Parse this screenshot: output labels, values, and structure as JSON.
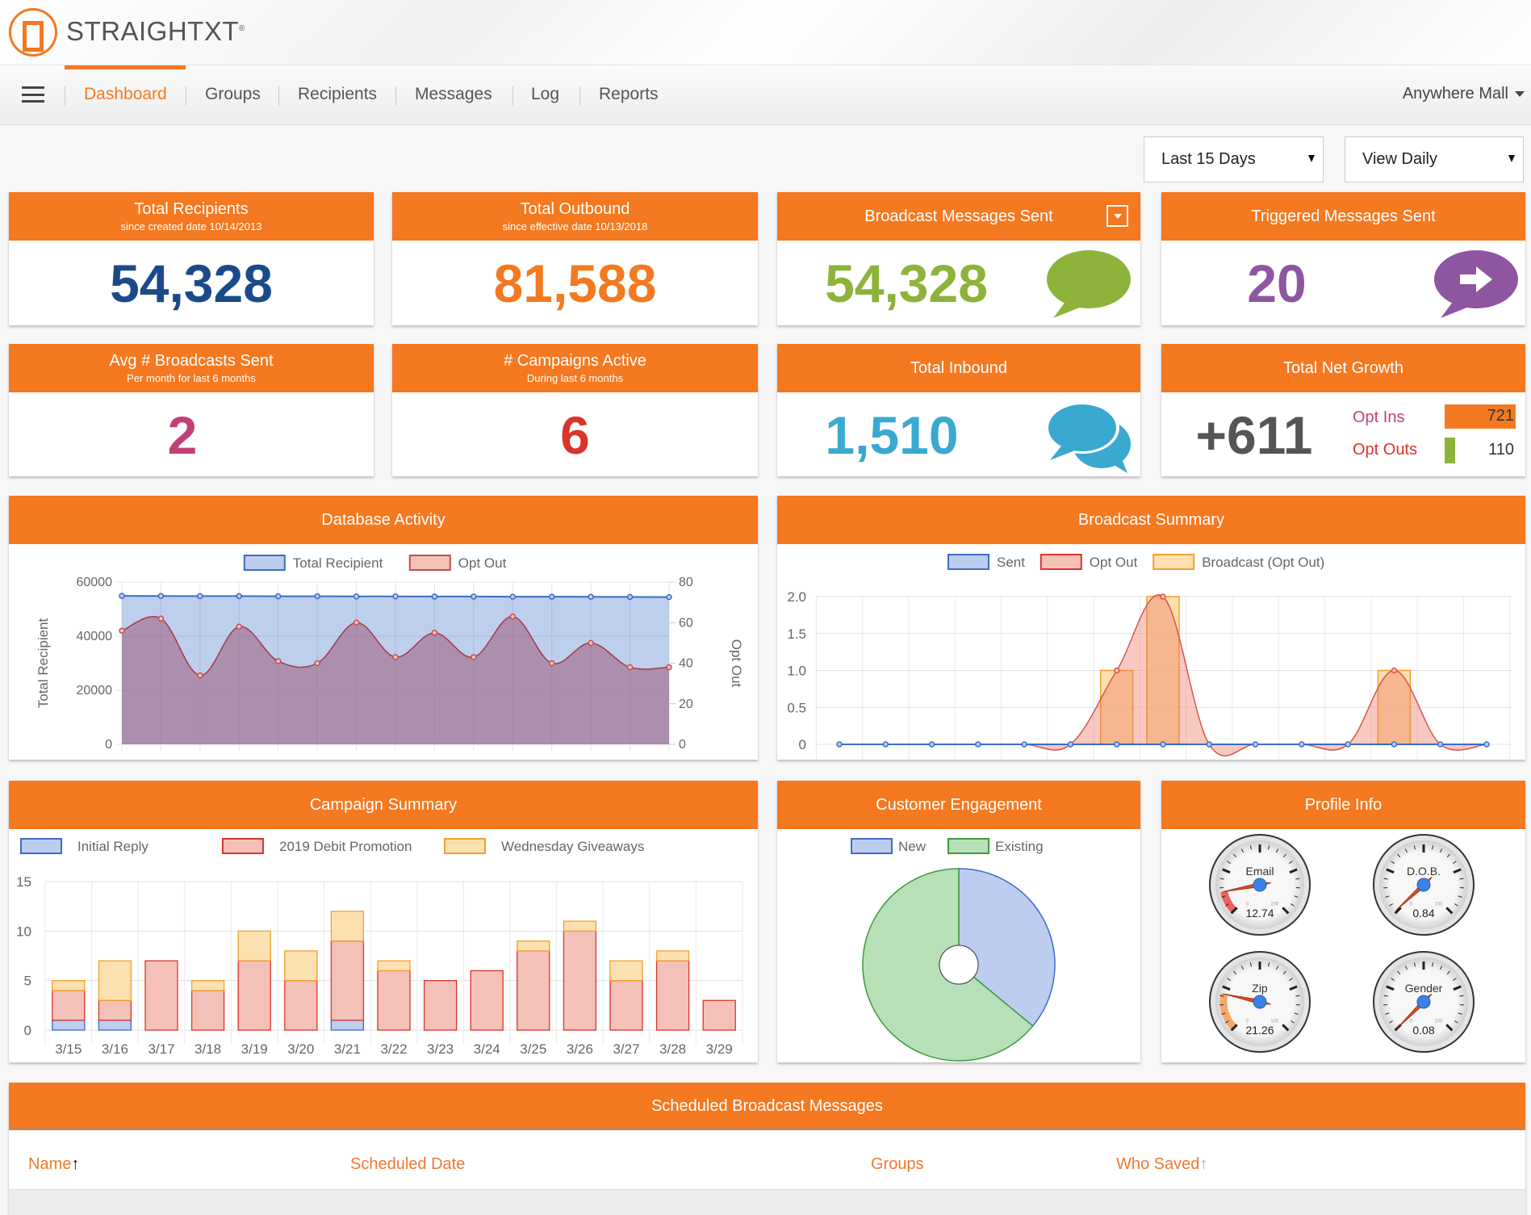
{
  "brand": {
    "name": "STRAIGHTXT",
    "mark": "®"
  },
  "nav": {
    "items": [
      {
        "label": "Dashboard",
        "active": true
      },
      {
        "label": "Groups"
      },
      {
        "label": "Recipients"
      },
      {
        "label": "Messages"
      },
      {
        "label": "Log"
      },
      {
        "label": "Reports"
      }
    ],
    "account": "Anywhere Mall"
  },
  "filters": {
    "range": "Last 15 Days",
    "view": "View Daily"
  },
  "cards": {
    "total_recipients": {
      "title": "Total Recipients",
      "subtitle": "since created date 10/14/2013",
      "value": "54,328",
      "color": "#1b4a8a"
    },
    "total_outbound": {
      "title": "Total Outbound",
      "subtitle": "since effective date 10/13/2018",
      "value": "81,588",
      "color": "#f47920"
    },
    "broadcast_sent": {
      "title": "Broadcast Messages Sent",
      "value": "54,328",
      "color": "#8db33a",
      "icon": "speech-bubble-icon"
    },
    "triggered_sent": {
      "title": "Triggered Messages Sent",
      "value": "20",
      "color": "#8e55a0",
      "icon": "arrow-bubble-icon"
    },
    "avg_broadcasts": {
      "title": "Avg # Broadcasts Sent",
      "subtitle": "Per month for last 6 months",
      "value": "2",
      "color": "#c2407a"
    },
    "campaigns_active": {
      "title": "# Campaigns Active",
      "subtitle": "During last 6 months",
      "value": "6",
      "color": "#d9342b"
    },
    "total_inbound": {
      "title": "Total Inbound",
      "value": "1,510",
      "color": "#3aa9d0",
      "icon": "conversation-bubbles-icon"
    },
    "net_growth": {
      "title": "Total Net Growth",
      "value": "+611",
      "opt_ins_label": "Opt Ins",
      "opt_ins": 721,
      "opt_ins_text": "721",
      "opt_outs_label": "Opt Outs",
      "opt_outs": 110,
      "opt_outs_text": "110"
    }
  },
  "panels": {
    "database_activity": "Database Activity",
    "broadcast_summary": "Broadcast Summary",
    "campaign_summary": "Campaign Summary",
    "customer_engagement": "Customer Engagement",
    "profile_info": "Profile Info"
  },
  "chart_data": [
    {
      "id": "database_activity",
      "type": "line",
      "legend": "top",
      "series": [
        {
          "name": "Total Recipient",
          "axis": "left",
          "values": [
            54900,
            54850,
            54800,
            54800,
            54750,
            54750,
            54700,
            54700,
            54650,
            54650,
            54600,
            54600,
            54550,
            54500,
            54450
          ],
          "color": "#3b6cc7"
        },
        {
          "name": "Opt Out",
          "axis": "right",
          "values": [
            56,
            62,
            34,
            58,
            41,
            40,
            60,
            43,
            55,
            43,
            63,
            40,
            50,
            38,
            38
          ],
          "color": "#c0504d"
        }
      ],
      "ylabel": "Total Recipient",
      "y2label": "Opt Out",
      "ylim": [
        0,
        60000
      ],
      "y2lim": [
        0,
        80
      ],
      "yticks": [
        "0",
        "20000",
        "40000",
        "60000"
      ],
      "y2ticks": [
        "0",
        "20",
        "40",
        "60",
        "80"
      ],
      "grid": true
    },
    {
      "id": "broadcast_summary",
      "type": "line+bar",
      "legend": "top",
      "series": [
        {
          "name": "Sent",
          "values": [
            0,
            0,
            0,
            0,
            0,
            0,
            0,
            0,
            0,
            0,
            0,
            0,
            0,
            0,
            0
          ],
          "color": "#3b6cc7"
        },
        {
          "name": "Opt Out",
          "values": [
            0,
            0,
            0,
            0,
            0,
            0,
            1,
            2,
            0,
            0,
            0,
            0,
            1,
            0,
            0
          ],
          "color": "#d9534f"
        },
        {
          "name": "Broadcast (Opt Out)",
          "values": [
            0,
            0,
            0,
            0,
            0,
            0,
            1,
            2,
            0,
            0,
            0,
            0,
            1,
            0,
            0
          ],
          "color": "#f0a030"
        }
      ],
      "ylim": [
        0,
        2
      ],
      "yticks": [
        "0",
        "0.5",
        "1.0",
        "1.5",
        "2.0"
      ],
      "grid": true
    },
    {
      "id": "campaign_summary",
      "type": "stacked-bar",
      "legend": "top",
      "categories": [
        "3/15",
        "3/16",
        "3/17",
        "3/18",
        "3/19",
        "3/20",
        "3/21",
        "3/22",
        "3/23",
        "3/24",
        "3/25",
        "3/26",
        "3/27",
        "3/28",
        "3/29"
      ],
      "series": [
        {
          "name": "Initial Reply",
          "values": [
            1,
            1,
            0,
            0,
            0,
            0,
            1,
            0,
            0,
            0,
            0,
            0,
            0,
            0,
            0
          ],
          "color": "#3b6cc7",
          "fill": "#bccdef"
        },
        {
          "name": "2019 Debit Promotion",
          "values": [
            3,
            2,
            7,
            4,
            7,
            5,
            8,
            6,
            5,
            6,
            8,
            10,
            5,
            7,
            3
          ],
          "color": "#d9342b",
          "fill": "#f4c1b8"
        },
        {
          "name": "Wednesday Giveaways",
          "values": [
            1,
            4,
            0,
            1,
            3,
            3,
            3,
            1,
            0,
            0,
            1,
            1,
            2,
            1,
            0
          ],
          "color": "#f0a030",
          "fill": "#fde0b0"
        }
      ],
      "ylim": [
        0,
        15
      ],
      "yticks": [
        "0",
        "5",
        "10",
        "15"
      ],
      "grid": true
    },
    {
      "id": "customer_engagement",
      "type": "pie",
      "legend": "top",
      "slices": [
        {
          "name": "New",
          "value": 36,
          "color": "#3b6cc7",
          "fill": "#bccdef"
        },
        {
          "name": "Existing",
          "value": 64,
          "color": "#3a9c3a",
          "fill": "#b8e0b8"
        }
      ]
    }
  ],
  "gauges": [
    {
      "label": "Email",
      "value": 12.74,
      "value_text": "12.74",
      "band": "#f06060"
    },
    {
      "label": "D.O.B.",
      "value": 0.84,
      "value_text": "0.84",
      "band": "#f06060"
    },
    {
      "label": "Zip",
      "value": 21.26,
      "value_text": "21.26",
      "band": "#f5a86a"
    },
    {
      "label": "Gender",
      "value": 0.08,
      "value_text": "0.08",
      "band": "#f5a86a"
    }
  ],
  "gauge_scale": {
    "min": "0",
    "max": "100"
  },
  "scheduled": {
    "title": "Scheduled Broadcast Messages",
    "columns": [
      "Name",
      "Scheduled Date",
      "Groups",
      "Who Saved"
    ]
  }
}
